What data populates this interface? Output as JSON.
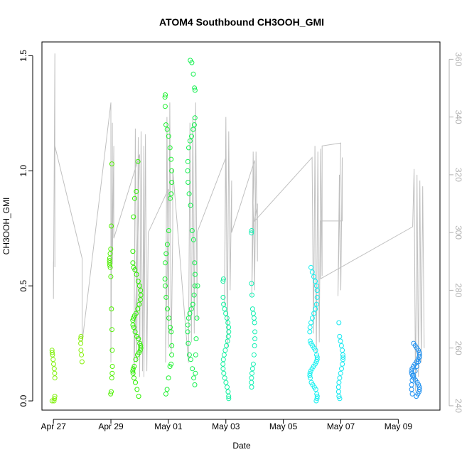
{
  "chart_data": {
    "type": "scatter",
    "title": "ATOM4 Southbound CH3OOH_GMI",
    "xlabel": "Date",
    "ylabel": "CH3OOH_GMI",
    "x_unit": "days since Apr 27",
    "xlim": [
      -0.4,
      13.45
    ],
    "ylim": [
      -0.04,
      1.56
    ],
    "y2lim": [
      238.5,
      366
    ],
    "yticks": [
      0.0,
      0.5,
      1.0,
      1.5
    ],
    "ytick_labels": [
      "0.0",
      "0.5",
      "1.0",
      "1.5"
    ],
    "y2ticks": [
      240,
      260,
      280,
      300,
      320,
      340,
      360
    ],
    "y2tick_labels": [
      "240",
      "260",
      "280",
      "300",
      "320",
      "340",
      "360"
    ],
    "xticks": [
      0,
      2,
      4,
      6,
      8,
      10,
      12
    ],
    "xtick_labels": [
      "Apr 27",
      "Apr 29",
      "May 01",
      "May 03",
      "May 05",
      "May 07",
      "May 09"
    ],
    "colors": {
      "secondary_line": "#c0c0c0",
      "axis": "#000000",
      "right_axis": "#b0b0b0"
    },
    "point_groups": [
      {
        "x": 0.0,
        "spread": 0.05,
        "color": "#7ff00a",
        "values": [
          0.0,
          0.01,
          0.02,
          0.1,
          0.12,
          0.14,
          0.16,
          0.18,
          0.2,
          0.21,
          0.22,
          0.0
        ]
      },
      {
        "x": 1.0,
        "spread": 0.05,
        "color": "#88f00c",
        "values": [
          0.17,
          0.2,
          0.22,
          0.25,
          0.27,
          0.28
        ]
      },
      {
        "x": 2.0,
        "spread": 0.05,
        "color": "#4ef000",
        "values": [
          0.03,
          0.04,
          0.1,
          0.12,
          0.15,
          0.22,
          0.31,
          0.4,
          0.54,
          0.58,
          0.59,
          0.6,
          0.61,
          0.62,
          0.64,
          0.66,
          0.76,
          1.03
        ]
      },
      {
        "x": 2.9,
        "spread": 0.14,
        "color": "#2ef000",
        "values": [
          0.02,
          0.05,
          0.08,
          0.1,
          0.12,
          0.13,
          0.14,
          0.15,
          0.18,
          0.2,
          0.21,
          0.22,
          0.23,
          0.24,
          0.25,
          0.27,
          0.28,
          0.3,
          0.32,
          0.33,
          0.35,
          0.36,
          0.37,
          0.38,
          0.4,
          0.42,
          0.44,
          0.46,
          0.48,
          0.5,
          0.52,
          0.55,
          0.57,
          0.58,
          0.6,
          0.65,
          0.8,
          0.88,
          0.91,
          1.04
        ]
      },
      {
        "x": 4.0,
        "spread": 0.12,
        "color": "#1ef030",
        "values": [
          0.03,
          0.05,
          0.1,
          0.15,
          0.16,
          0.2,
          0.24,
          0.3,
          0.32,
          0.36,
          0.4,
          0.45,
          0.5,
          0.53,
          0.6,
          0.64,
          0.68,
          0.74,
          0.88,
          0.9,
          0.95,
          1.0,
          1.05,
          1.1,
          1.15,
          1.18,
          1.2,
          1.28,
          1.32,
          1.33
        ]
      },
      {
        "x": 4.8,
        "spread": 0.13,
        "color": "#14f050",
        "values": [
          0.07,
          0.1,
          0.14,
          0.18,
          0.2,
          0.25,
          0.3,
          0.33,
          0.36,
          0.38,
          0.4,
          0.42,
          0.46,
          0.5,
          0.55,
          0.6,
          0.7,
          0.74,
          0.85,
          0.9,
          0.95,
          1.0,
          1.04,
          1.1,
          1.13,
          1.15,
          1.18,
          1.2,
          1.23,
          1.35,
          1.36,
          1.42,
          1.47,
          1.48
        ]
      },
      {
        "x": 5.0,
        "spread": 0.06,
        "color": "#14f050",
        "values": [
          0.12,
          0.2,
          0.27,
          0.36,
          0.5
        ]
      },
      {
        "x": 6.0,
        "spread": 0.1,
        "color": "#14f0a0",
        "values": [
          0.01,
          0.02,
          0.04,
          0.06,
          0.08,
          0.1,
          0.12,
          0.14,
          0.16,
          0.18,
          0.2,
          0.22,
          0.24,
          0.26,
          0.28,
          0.3,
          0.32,
          0.34,
          0.36,
          0.38,
          0.4,
          0.42,
          0.45,
          0.52,
          0.53
        ]
      },
      {
        "x": 6.95,
        "spread": 0.06,
        "color": "#14f0b4",
        "values": [
          0.06,
          0.08,
          0.1,
          0.12,
          0.14,
          0.16,
          0.2,
          0.24,
          0.27,
          0.3,
          0.34,
          0.36,
          0.38,
          0.4,
          0.46,
          0.51,
          0.73,
          0.74
        ]
      },
      {
        "x": 9.05,
        "spread": 0.13,
        "color": "#14f0f0",
        "values": [
          0.0,
          0.01,
          0.02,
          0.03,
          0.05,
          0.06,
          0.07,
          0.08,
          0.1,
          0.11,
          0.12,
          0.13,
          0.14,
          0.15,
          0.16,
          0.17,
          0.18,
          0.19,
          0.2,
          0.22,
          0.23,
          0.24,
          0.25,
          0.26,
          0.3,
          0.32,
          0.34,
          0.36,
          0.38,
          0.4,
          0.42,
          0.45,
          0.48,
          0.5,
          0.52,
          0.54,
          0.56,
          0.58
        ]
      },
      {
        "x": 10.0,
        "spread": 0.08,
        "color": "#14e8f0",
        "values": [
          0.01,
          0.02,
          0.04,
          0.06,
          0.08,
          0.1,
          0.12,
          0.14,
          0.16,
          0.18,
          0.19,
          0.2,
          0.22,
          0.24,
          0.26,
          0.28,
          0.34
        ]
      },
      {
        "x": 12.6,
        "spread": 0.14,
        "color": "#1e90f0",
        "values": [
          0.02,
          0.03,
          0.04,
          0.05,
          0.06,
          0.07,
          0.08,
          0.09,
          0.1,
          0.11,
          0.12,
          0.13,
          0.14,
          0.15,
          0.16,
          0.17,
          0.18,
          0.19,
          0.2,
          0.21,
          0.22,
          0.23,
          0.24,
          0.25,
          0.03,
          0.05,
          0.07,
          0.09,
          0.11,
          0.13,
          0.15,
          0.17,
          0.19
        ]
      }
    ],
    "secondary_series": {
      "name": "right axis trace",
      "points": [
        [
          0.0,
          290
        ],
        [
          0.0,
          277
        ],
        [
          0.05,
          362
        ],
        [
          0.05,
          288
        ],
        [
          0.05,
          330
        ],
        [
          1.0,
          291
        ],
        [
          1.0,
          290
        ],
        [
          1.0,
          278
        ],
        [
          1.0,
          262
        ],
        [
          2.0,
          345
        ],
        [
          2.0,
          255
        ],
        [
          2.05,
          338
        ],
        [
          2.05,
          289
        ],
        [
          2.1,
          330
        ],
        [
          2.1,
          298
        ],
        [
          3.0,
          327
        ],
        [
          2.8,
          250
        ],
        [
          2.85,
          336
        ],
        [
          2.9,
          255
        ],
        [
          2.95,
          333
        ],
        [
          3.0,
          250
        ],
        [
          3.05,
          335
        ],
        [
          3.1,
          252
        ],
        [
          3.15,
          330
        ],
        [
          3.15,
          250
        ],
        [
          3.2,
          334
        ],
        [
          3.25,
          252
        ],
        [
          3.3,
          300
        ],
        [
          4.0,
          315
        ],
        [
          3.9,
          255
        ],
        [
          3.95,
          340
        ],
        [
          4.0,
          260
        ],
        [
          4.05,
          345
        ],
        [
          4.1,
          258
        ],
        [
          4.15,
          300
        ],
        [
          4.15,
          322
        ],
        [
          4.7,
          255
        ],
        [
          4.75,
          338
        ],
        [
          4.8,
          262
        ],
        [
          4.85,
          340
        ],
        [
          4.9,
          265
        ],
        [
          4.95,
          345
        ],
        [
          5.0,
          270
        ],
        [
          5.0,
          300
        ],
        [
          6.0,
          326
        ],
        [
          5.95,
          275
        ],
        [
          6.0,
          340
        ],
        [
          6.05,
          260
        ],
        [
          6.1,
          335
        ],
        [
          6.15,
          280
        ],
        [
          6.2,
          318
        ],
        [
          6.2,
          300
        ],
        [
          7.0,
          325
        ],
        [
          6.9,
          278
        ],
        [
          6.95,
          328
        ],
        [
          7.0,
          280
        ],
        [
          7.05,
          328
        ],
        [
          7.1,
          290
        ],
        [
          7.1,
          310
        ],
        [
          7.0,
          304
        ],
        [
          9.0,
          326
        ],
        [
          9.05,
          265
        ],
        [
          9.1,
          330
        ],
        [
          9.15,
          258
        ],
        [
          9.2,
          328
        ],
        [
          9.25,
          262
        ],
        [
          9.3,
          329
        ],
        [
          9.35,
          285
        ],
        [
          9.35,
          330
        ],
        [
          10.0,
          331
        ],
        [
          9.9,
          278
        ],
        [
          9.95,
          320
        ],
        [
          10.0,
          280
        ],
        [
          10.05,
          326
        ],
        [
          10.05,
          304
        ],
        [
          9.3,
          304
        ],
        [
          9.3,
          284
        ],
        [
          12.5,
          302
        ],
        [
          12.55,
          322
        ],
        [
          12.6,
          245
        ],
        [
          12.65,
          320
        ],
        [
          12.7,
          250
        ],
        [
          12.75,
          318
        ],
        [
          12.8,
          255
        ],
        [
          12.85,
          316
        ],
        [
          12.9,
          260
        ]
      ]
    }
  }
}
